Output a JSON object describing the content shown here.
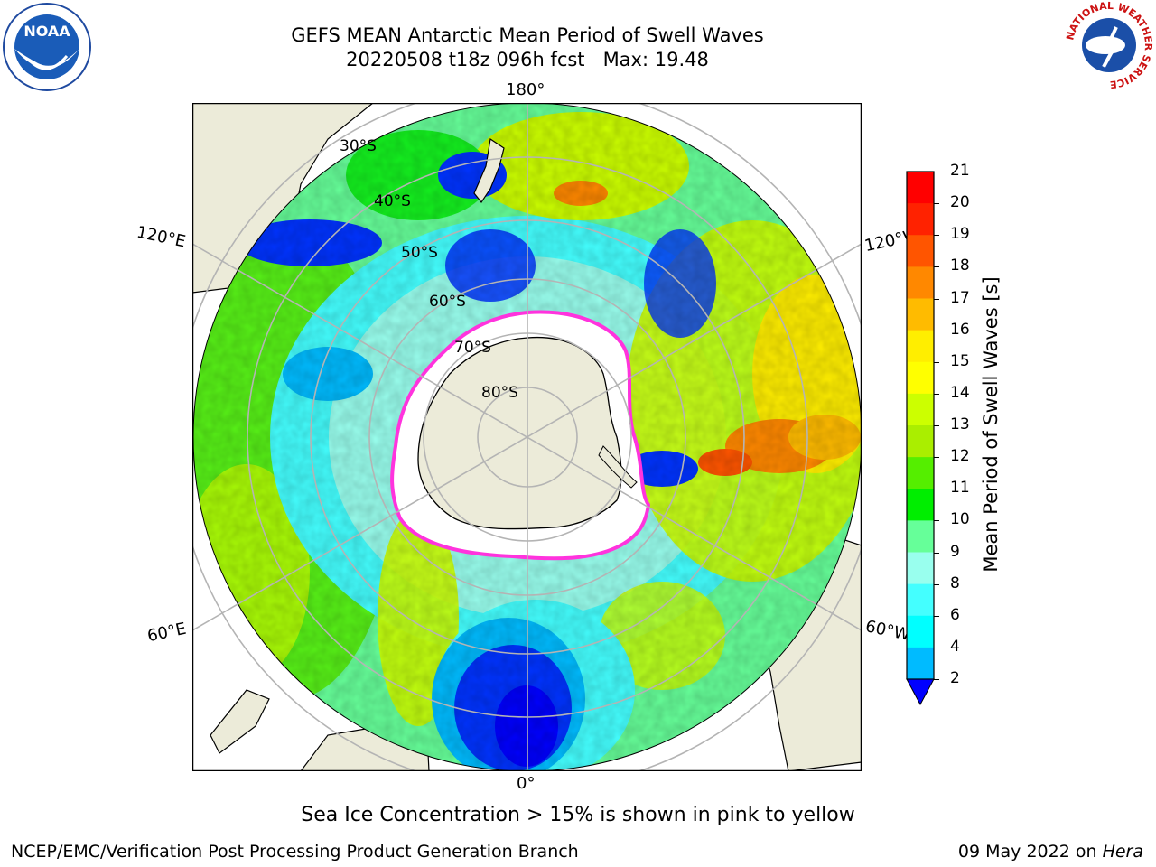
{
  "title": {
    "line1": "GEFS MEAN Antarctic Mean Period of Swell Waves",
    "line2": "20220508 t18z 096h fcst   Max: 19.48"
  },
  "map": {
    "projection": "south-polar-stereographic",
    "longitude_labels": {
      "top": "180°",
      "left_upper": "120°E",
      "left_lower": "60°E",
      "bottom": "0°",
      "right_upper": "120°W",
      "right_lower": "60°W"
    },
    "latitude_labels": [
      "30°S",
      "40°S",
      "50°S",
      "60°S",
      "70°S",
      "80°S"
    ],
    "colors": {
      "land": "#ecebd9",
      "ice_interior": "#ffffff",
      "ice_edge": "#ff33dd",
      "grid": "#b4b4b4"
    }
  },
  "colorbar": {
    "label": "Mean Period of Swell Waves [s]",
    "ticks": [
      "2",
      "4",
      "6",
      "8",
      "9",
      "10",
      "11",
      "12",
      "13",
      "14",
      "15",
      "16",
      "17",
      "18",
      "19",
      "20",
      "21"
    ],
    "colors": [
      "#0033ff",
      "#00bbff",
      "#00ffff",
      "#44ffff",
      "#99ffee",
      "#66ff99",
      "#00ee00",
      "#55ee00",
      "#aaee00",
      "#ccff00",
      "#ffff00",
      "#ffee00",
      "#ffbb00",
      "#ff8800",
      "#ff5500",
      "#ff2200",
      "#ff0000"
    ],
    "under_color": "#0000ff"
  },
  "sea_ice_note": "Sea Ice Concentration > 15% is shown in pink to yellow",
  "footer": {
    "left": "NCEP/EMC/Verification Post Processing Product Generation Branch",
    "date": "09 May 2022 on",
    "host": "Hera"
  },
  "logos": {
    "noaa": "NOAA",
    "nws": "NATIONAL WEATHER SERVICE"
  }
}
